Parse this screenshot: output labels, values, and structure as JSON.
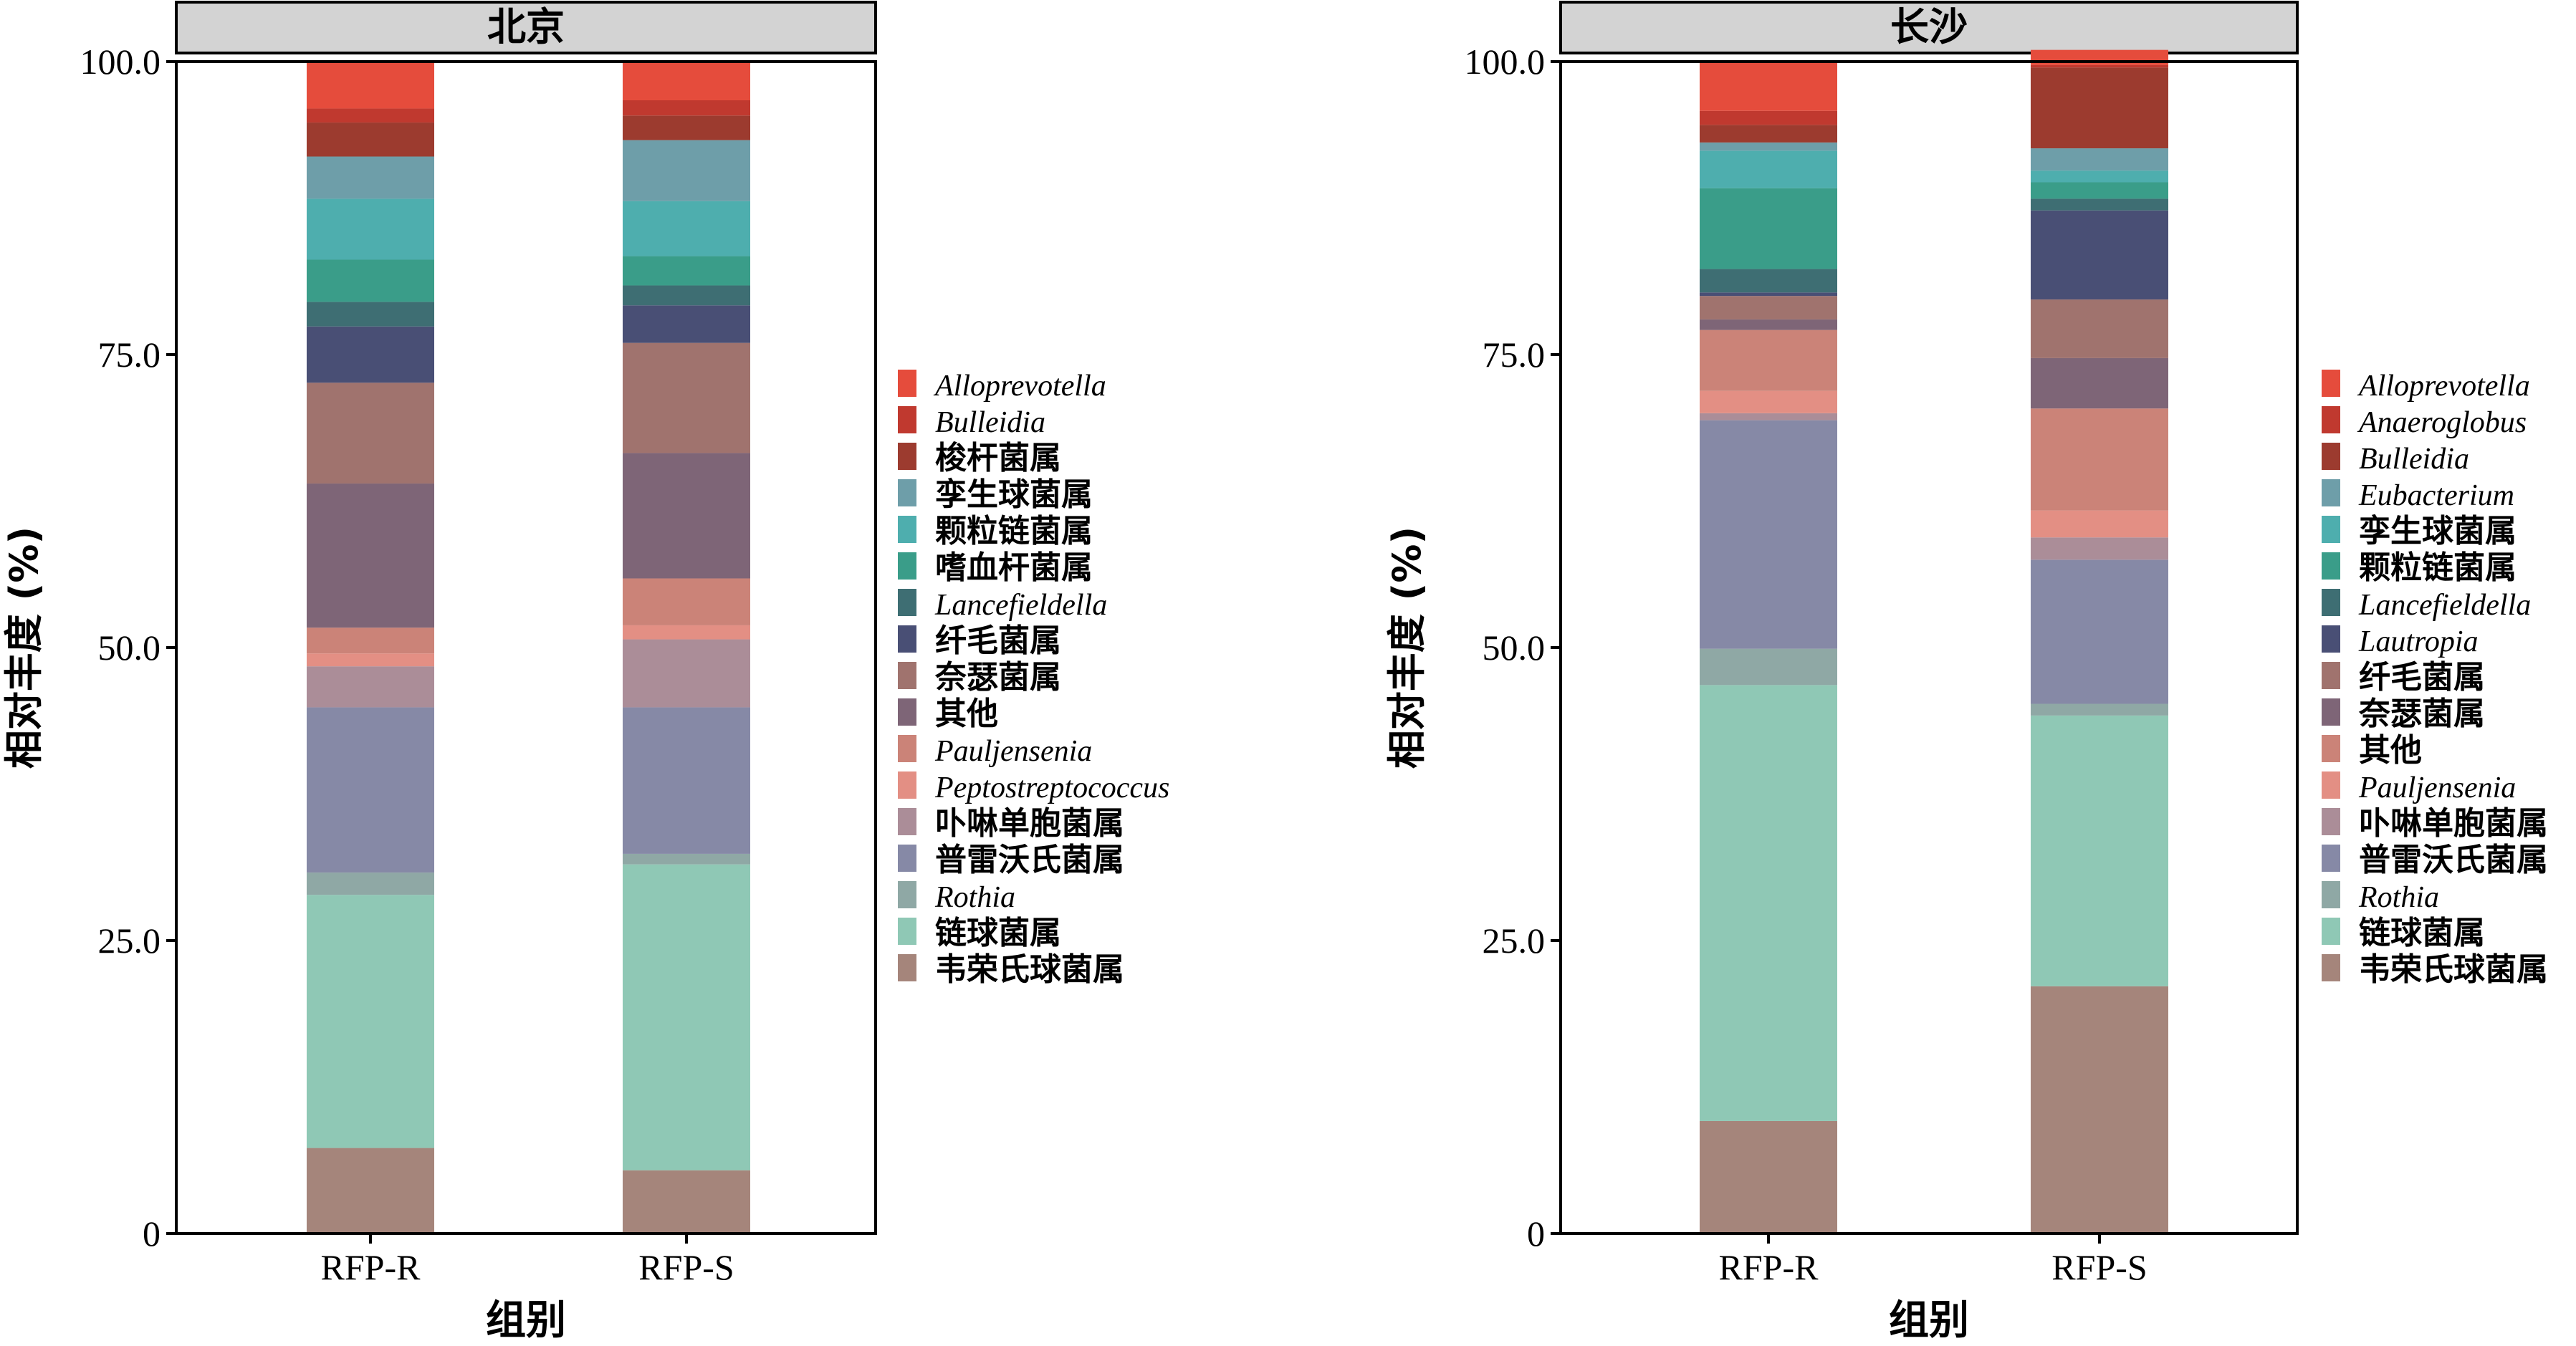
{
  "chart_data": [
    {
      "type": "bar",
      "stacked": true,
      "title": "北京",
      "xlabel": "组别",
      "ylabel": "相对丰度 (%)",
      "ylim": [
        0,
        100
      ],
      "yticks": [
        "0",
        "25.0",
        "50.0",
        "75.0",
        "100.0"
      ],
      "categories": [
        "RFP-R",
        "RFP-S"
      ],
      "legend_position": "right",
      "series": [
        {
          "name": "韦荣氏球菌属",
          "color": "#a5857b",
          "italic": false,
          "values": [
            7.3,
            5.4
          ]
        },
        {
          "name": "链球菌属",
          "color": "#8fc8b5",
          "italic": false,
          "values": [
            21.6,
            26.1
          ]
        },
        {
          "name": "Rothia",
          "color": "#8fa8a5",
          "italic": true,
          "values": [
            1.9,
            0.9
          ]
        },
        {
          "name": "普雷沃氏菌属",
          "color": "#8689a6",
          "italic": false,
          "values": [
            14.1,
            12.5
          ]
        },
        {
          "name": "卟啉单胞菌属",
          "color": "#ab8d98",
          "italic": false,
          "values": [
            3.5,
            5.8
          ]
        },
        {
          "name": "Peptostreptococcus",
          "color": "#e38f84",
          "italic": true,
          "values": [
            1.1,
            1.2
          ]
        },
        {
          "name": "Pauljensenia",
          "color": "#cb8378",
          "italic": true,
          "values": [
            2.2,
            4.0
          ]
        },
        {
          "name": "其他",
          "color": "#7e6577",
          "italic": false,
          "values": [
            12.3,
            10.7
          ]
        },
        {
          "name": "奈瑟菌属",
          "color": "#a0736e",
          "italic": false,
          "values": [
            8.6,
            9.4
          ]
        },
        {
          "name": "纤毛菌属",
          "color": "#494f75",
          "italic": false,
          "values": [
            4.8,
            3.2
          ]
        },
        {
          "name": "Lancefieldella",
          "color": "#3e6e73",
          "italic": true,
          "values": [
            2.1,
            1.7
          ]
        },
        {
          "name": "嗜血杆菌属",
          "color": "#3a9d89",
          "italic": false,
          "values": [
            3.6,
            2.5
          ]
        },
        {
          "name": "颗粒链菌属",
          "color": "#4eaeae",
          "italic": false,
          "values": [
            5.2,
            4.7
          ]
        },
        {
          "name": "孪生球菌属",
          "color": "#6e9ea9",
          "italic": false,
          "values": [
            3.6,
            5.2
          ]
        },
        {
          "name": "梭杆菌属",
          "color": "#9c3b2f",
          "italic": false,
          "values": [
            2.9,
            2.1
          ]
        },
        {
          "name": "Bulleidia",
          "color": "#c0392f",
          "italic": true,
          "values": [
            1.2,
            1.3
          ]
        },
        {
          "name": "Alloprevotella",
          "color": "#e54c3c",
          "italic": true,
          "values": [
            3.9,
            3.4
          ]
        }
      ]
    },
    {
      "type": "bar",
      "stacked": true,
      "title": "长沙",
      "xlabel": "组别",
      "ylabel": "相对丰度 (%)",
      "ylim": [
        0,
        100
      ],
      "yticks": [
        "0",
        "25.0",
        "50.0",
        "75.0",
        "100.0"
      ],
      "categories": [
        "RFP-R",
        "RFP-S"
      ],
      "legend_position": "right",
      "series": [
        {
          "name": "韦荣氏球菌属",
          "color": "#a5857b",
          "italic": false,
          "values": [
            9.6,
            21.1
          ]
        },
        {
          "name": "链球菌属",
          "color": "#8fc8b5",
          "italic": false,
          "values": [
            37.2,
            23.1
          ]
        },
        {
          "name": "Rothia",
          "color": "#8fa8a5",
          "italic": true,
          "values": [
            3.1,
            1.0
          ]
        },
        {
          "name": "普雷沃氏菌属",
          "color": "#8689a6",
          "italic": false,
          "values": [
            19.5,
            12.3
          ]
        },
        {
          "name": "卟啉单胞菌属",
          "color": "#ab8d98",
          "italic": false,
          "values": [
            0.6,
            1.9
          ]
        },
        {
          "name": "Pauljensenia",
          "color": "#e38f84",
          "italic": true,
          "values": [
            1.9,
            2.3
          ]
        },
        {
          "name": "其他",
          "color": "#cb8378",
          "italic": false,
          "values": [
            5.2,
            8.7
          ]
        },
        {
          "name": "奈瑟菌属",
          "color": "#7e6577",
          "italic": false,
          "values": [
            0.9,
            4.3
          ]
        },
        {
          "name": "纤毛菌属",
          "color": "#a0736e",
          "italic": false,
          "values": [
            2.0,
            5.0
          ]
        },
        {
          "name": "Lautropia",
          "color": "#494f75",
          "italic": true,
          "values": [
            0.3,
            7.6
          ]
        },
        {
          "name": "Lancefieldella",
          "color": "#3e6e73",
          "italic": true,
          "values": [
            2.0,
            1.0
          ]
        },
        {
          "name": "颗粒链菌属",
          "color": "#3a9d89",
          "italic": false,
          "values": [
            6.9,
            1.4
          ]
        },
        {
          "name": "孪生球菌属",
          "color": "#4eaeae",
          "italic": false,
          "values": [
            3.2,
            1.0
          ]
        },
        {
          "name": "Eubacterium",
          "color": "#6e9ea9",
          "italic": true,
          "values": [
            0.7,
            1.9
          ]
        },
        {
          "name": "Bulleidia",
          "color": "#9c3b2f",
          "italic": true,
          "values": [
            1.5,
            6.9
          ]
        },
        {
          "name": "Anaeroglobus",
          "color": "#c0392f",
          "italic": true,
          "values": [
            1.2,
            0.2
          ]
        },
        {
          "name": "Alloprevotella",
          "color": "#e54c3c",
          "italic": true,
          "values": [
            4.2,
            1.3
          ]
        }
      ]
    }
  ]
}
